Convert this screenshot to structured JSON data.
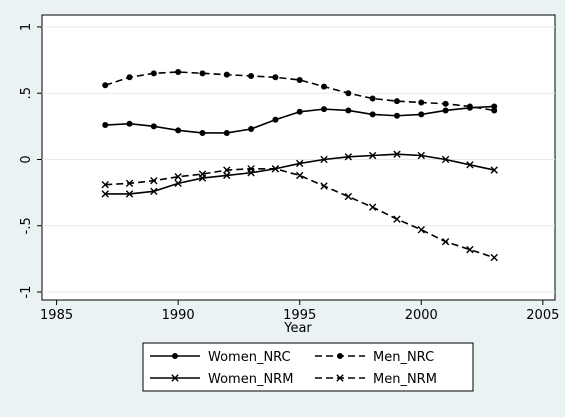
{
  "chart_data": {
    "type": "line",
    "x_label": "Year",
    "x": [
      1987,
      1988,
      1989,
      1990,
      1991,
      1992,
      1993,
      1994,
      1995,
      1996,
      1997,
      1998,
      1999,
      2000,
      2001,
      2002,
      2003
    ],
    "series": [
      {
        "name": "Women_NRC",
        "color": "#000000",
        "dash": false,
        "marker": "circle",
        "values": [
          0.26,
          0.27,
          0.25,
          0.22,
          0.2,
          0.2,
          0.23,
          0.3,
          0.36,
          0.38,
          0.37,
          0.34,
          0.33,
          0.34,
          0.37,
          0.39,
          0.4
        ]
      },
      {
        "name": "Men_NRC",
        "color": "#000000",
        "dash": true,
        "marker": "circle",
        "values": [
          0.56,
          0.62,
          0.65,
          0.66,
          0.65,
          0.64,
          0.63,
          0.62,
          0.6,
          0.55,
          0.5,
          0.46,
          0.44,
          0.43,
          0.42,
          0.4,
          0.37
        ]
      },
      {
        "name": "Women_NRM",
        "color": "#000000",
        "dash": false,
        "marker": "x",
        "values": [
          -0.26,
          -0.26,
          -0.24,
          -0.18,
          -0.14,
          -0.12,
          -0.1,
          -0.07,
          -0.03,
          0,
          0.02,
          0.03,
          0.04,
          0.03,
          0,
          -0.04,
          -0.08
        ]
      },
      {
        "name": "Men_NRM",
        "color": "#000000",
        "dash": true,
        "marker": "x",
        "values": [
          -0.19,
          -0.18,
          -0.16,
          -0.13,
          -0.11,
          -0.08,
          -0.07,
          -0.07,
          -0.12,
          -0.2,
          -0.28,
          -0.36,
          -0.45,
          -0.53,
          -0.62,
          -0.68,
          -0.74
        ]
      }
    ],
    "xlim": [
      1984.4,
      2005.5
    ],
    "xticks": [
      1985,
      1990,
      1995,
      2000,
      2005
    ],
    "ylim": [
      -1.06,
      1.09
    ],
    "yticks": [
      {
        "value": -1,
        "label": "-1"
      },
      {
        "value": -0.5,
        "label": "-.5"
      },
      0,
      {
        "value": 0.5,
        "label": ".5"
      },
      1
    ],
    "grid": true,
    "legend": "bottom"
  }
}
